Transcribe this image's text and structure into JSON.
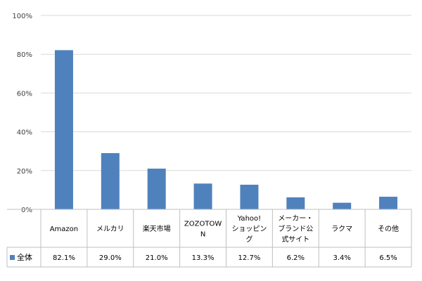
{
  "chart_data": {
    "type": "bar",
    "categories": [
      [
        "Amazon"
      ],
      [
        "メルカリ"
      ],
      [
        "楽天市場"
      ],
      [
        "ZOZOTOW",
        "N"
      ],
      [
        "Yahoo!",
        "ショッピン",
        "グ"
      ],
      [
        "メーカー・",
        "ブランド公",
        "式サイト"
      ],
      [
        "ラクマ"
      ],
      [
        "その他"
      ]
    ],
    "series": [
      {
        "name": "全体",
        "values": [
          82.1,
          29.0,
          21.0,
          13.3,
          12.7,
          6.2,
          3.4,
          6.5
        ],
        "labels": [
          "82.1%",
          "29.0%",
          "21.0%",
          "13.3%",
          "12.7%",
          "6.2%",
          "3.4%",
          "6.5%"
        ]
      }
    ],
    "yticks": [
      "0%",
      "20%",
      "40%",
      "60%",
      "80%",
      "100%"
    ],
    "ylim": [
      0,
      100
    ],
    "grid": true,
    "legend": "data-table",
    "color": "#4f81bd"
  }
}
